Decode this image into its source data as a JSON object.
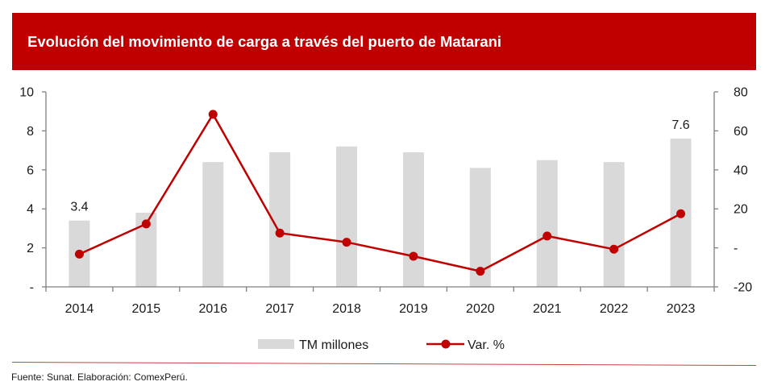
{
  "header": {
    "title": "Evolución del movimiento de carga a través del puerto de Matarani"
  },
  "colors": {
    "banner": "#C00000",
    "bar": "#D9D9D9",
    "line": "#C00000",
    "axis": "#808080"
  },
  "chart_data": {
    "type": "bar+line",
    "title": "Evolución del movimiento de carga a través del puerto de Matarani",
    "xlabel": "",
    "categories": [
      "2014",
      "2015",
      "2016",
      "2017",
      "2018",
      "2019",
      "2020",
      "2021",
      "2022",
      "2023"
    ],
    "series": [
      {
        "name": "TM millones",
        "type": "bar",
        "axis": "left",
        "values": [
          3.4,
          3.8,
          6.4,
          6.9,
          7.2,
          6.9,
          6.1,
          6.5,
          6.4,
          7.6
        ]
      },
      {
        "name": "Var. %",
        "type": "line",
        "axis": "right",
        "values": [
          -3.2,
          12.3,
          68.5,
          7.6,
          2.9,
          -4.3,
          -12.0,
          6.1,
          -0.7,
          17.5
        ]
      }
    ],
    "data_labels": [
      {
        "category": "2014",
        "text": "3.4"
      },
      {
        "category": "2023",
        "text": "7.6"
      }
    ],
    "y_left": {
      "ylim": [
        0,
        10
      ],
      "ticks": [
        0,
        2,
        4,
        6,
        8,
        10
      ],
      "tick_labels": [
        "-",
        "2",
        "4",
        "6",
        "8",
        "10"
      ]
    },
    "y_right": {
      "ylim": [
        -20,
        80
      ],
      "ticks": [
        -20,
        0,
        20,
        40,
        60,
        80
      ],
      "tick_labels": [
        "-20",
        "-",
        "20",
        "40",
        "60",
        "80"
      ]
    },
    "grid": false,
    "legend": {
      "position": "bottom-center",
      "entries": [
        "TM millones",
        "Var. %"
      ]
    }
  },
  "footer": {
    "source": "Fuente: Sunat. Elaboración: ComexPerú."
  }
}
